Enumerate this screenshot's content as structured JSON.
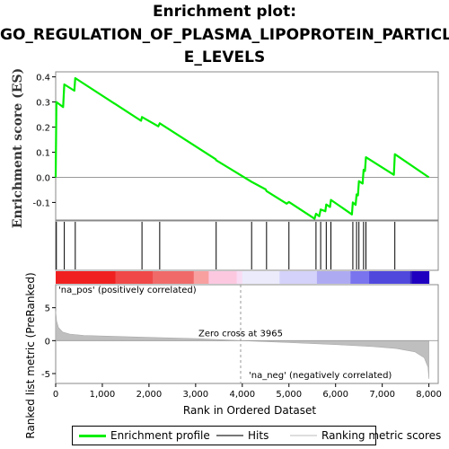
{
  "title_lines": [
    "Enrichment plot:",
    "GO_REGULATION_OF_PLASMA_LIPOPROTEIN_PARTICL",
    "E_LEVELS"
  ],
  "colors": {
    "enrichment": "#00ee00",
    "hits": "#000000",
    "ranking": "#bfbfbf",
    "pos_label": "#ee0000",
    "neg_label": "#0000cc"
  },
  "chart_data": [
    {
      "type": "line",
      "name": "enrichment-profile",
      "ylabel": "Enrichment score (ES)",
      "xlim": [
        0,
        8200
      ],
      "ylim": [
        -0.17,
        0.42
      ],
      "yticks": [
        "-0.1",
        "0.0",
        "0.1",
        "0.2",
        "0.3",
        "0.4"
      ],
      "grid": false,
      "points": [
        [
          0,
          0.0
        ],
        [
          15,
          0.3
        ],
        [
          160,
          0.28
        ],
        [
          185,
          0.37
        ],
        [
          400,
          0.345
        ],
        [
          420,
          0.395
        ],
        [
          1830,
          0.225
        ],
        [
          1850,
          0.24
        ],
        [
          2200,
          0.203
        ],
        [
          2230,
          0.215
        ],
        [
          3430,
          0.072
        ],
        [
          3440,
          0.068
        ],
        [
          4200,
          -0.018
        ],
        [
          4500,
          -0.048
        ],
        [
          4520,
          -0.055
        ],
        [
          4950,
          -0.105
        ],
        [
          5000,
          -0.098
        ],
        [
          5550,
          -0.165
        ],
        [
          5580,
          -0.145
        ],
        [
          5650,
          -0.155
        ],
        [
          5680,
          -0.128
        ],
        [
          5780,
          -0.135
        ],
        [
          5800,
          -0.108
        ],
        [
          5880,
          -0.118
        ],
        [
          5900,
          -0.09
        ],
        [
          6350,
          -0.148
        ],
        [
          6370,
          -0.1
        ],
        [
          6430,
          -0.11
        ],
        [
          6450,
          -0.068
        ],
        [
          6480,
          -0.072
        ],
        [
          6500,
          -0.015
        ],
        [
          6580,
          -0.025
        ],
        [
          6600,
          0.03
        ],
        [
          6630,
          0.025
        ],
        [
          6650,
          0.08
        ],
        [
          7250,
          0.01
        ],
        [
          7270,
          0.092
        ],
        [
          8000,
          0.0
        ]
      ]
    },
    {
      "type": "scatter",
      "name": "hits",
      "x": [
        15,
        185,
        420,
        1850,
        2230,
        3440,
        4200,
        4520,
        5000,
        5580,
        5680,
        5800,
        5900,
        6370,
        6450,
        6500,
        6600,
        6650,
        7270
      ]
    },
    {
      "type": "area",
      "name": "ranked-list-metric",
      "ylabel": "Ranked list metric (PreRanked)",
      "xlabel": "Rank in Ordered Dataset",
      "xlim": [
        0,
        8200
      ],
      "ylim": [
        -6.5,
        8.5
      ],
      "yticks": [
        "-5",
        "0",
        "5"
      ],
      "xticks": [
        "0",
        "1,000",
        "2,000",
        "3,000",
        "4,000",
        "5,000",
        "6,000",
        "7,000",
        "8,000"
      ],
      "points": [
        [
          0,
          4.5
        ],
        [
          20,
          3.0
        ],
        [
          60,
          2.0
        ],
        [
          150,
          1.3
        ],
        [
          300,
          1.0
        ],
        [
          600,
          0.8
        ],
        [
          1000,
          0.7
        ],
        [
          2000,
          0.5
        ],
        [
          3000,
          0.3
        ],
        [
          3965,
          0.0
        ],
        [
          5000,
          -0.3
        ],
        [
          6000,
          -0.6
        ],
        [
          6800,
          -0.9
        ],
        [
          7300,
          -1.2
        ],
        [
          7700,
          -1.7
        ],
        [
          7900,
          -2.6
        ],
        [
          7980,
          -4.0
        ],
        [
          8000,
          -5.8
        ]
      ]
    }
  ],
  "annotations": {
    "zero_cross": "Zero cross at 3965",
    "zero_cross_x": 3965,
    "pos_label": "'na_pos' (positively correlated)",
    "neg_label": "'na_neg' (negatively correlated)"
  },
  "legend": [
    {
      "label": "Enrichment profile",
      "icon": "green-line"
    },
    {
      "label": "Hits",
      "icon": "black-line"
    },
    {
      "label": "Ranking metric scores",
      "icon": "gray-line"
    }
  ]
}
